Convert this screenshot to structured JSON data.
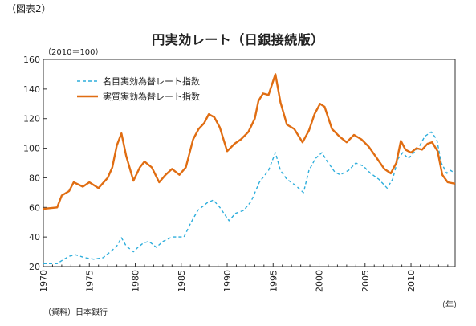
{
  "figure_label": "（図表2）",
  "unit_label": "（2010＝100）",
  "x_unit_label": "（年）",
  "source_label": "（資料）日本銀行",
  "chart_data": {
    "type": "line",
    "title": "円実効レート（日銀接続版）",
    "xlabel": "",
    "ylabel": "",
    "xlim": [
      1970,
      2014.8
    ],
    "ylim": [
      20,
      160
    ],
    "x_ticks": [
      1970,
      1975,
      1980,
      1985,
      1990,
      1995,
      2000,
      2005,
      2010
    ],
    "y_ticks": [
      20,
      40,
      60,
      80,
      100,
      120,
      140,
      160
    ],
    "legend_position": "top-left",
    "series": [
      {
        "name": "名目実効為替レート指数",
        "color": "#2eaedc",
        "dash": "dashed",
        "points": [
          [
            1970,
            22
          ],
          [
            1971.5,
            22
          ],
          [
            1972,
            24
          ],
          [
            1972.8,
            27
          ],
          [
            1973.5,
            28
          ],
          [
            1974.5,
            26
          ],
          [
            1975.5,
            25
          ],
          [
            1976.5,
            26
          ],
          [
            1977.3,
            30
          ],
          [
            1978.0,
            34
          ],
          [
            1978.5,
            39.5
          ],
          [
            1979.0,
            34
          ],
          [
            1979.8,
            30
          ],
          [
            1980.3,
            33
          ],
          [
            1980.9,
            36
          ],
          [
            1981.5,
            37
          ],
          [
            1982.3,
            33
          ],
          [
            1983.0,
            37
          ],
          [
            1984.0,
            40
          ],
          [
            1985.3,
            40
          ],
          [
            1986.0,
            49
          ],
          [
            1986.8,
            58
          ],
          [
            1987.8,
            63
          ],
          [
            1988.5,
            65
          ],
          [
            1989.2,
            60
          ],
          [
            1990.2,
            51
          ],
          [
            1990.9,
            56
          ],
          [
            1991.8,
            58
          ],
          [
            1992.6,
            64
          ],
          [
            1993.5,
            77
          ],
          [
            1994.5,
            85
          ],
          [
            1995.25,
            97
          ],
          [
            1995.8,
            85
          ],
          [
            1996.5,
            79
          ],
          [
            1997.4,
            75
          ],
          [
            1998.3,
            70
          ],
          [
            1998.9,
            85
          ],
          [
            1999.6,
            93
          ],
          [
            2000.3,
            97
          ],
          [
            2000.9,
            91
          ],
          [
            2001.7,
            84
          ],
          [
            2002.3,
            82
          ],
          [
            2003.2,
            85
          ],
          [
            2004.0,
            90
          ],
          [
            2004.8,
            88
          ],
          [
            2005.6,
            83
          ],
          [
            2006.5,
            79
          ],
          [
            2007.4,
            73
          ],
          [
            2008.0,
            79
          ],
          [
            2008.6,
            93
          ],
          [
            2009.1,
            97
          ],
          [
            2009.7,
            93
          ],
          [
            2010.3,
            97
          ],
          [
            2010.8,
            100
          ],
          [
            2011.5,
            108
          ],
          [
            2012.2,
            111
          ],
          [
            2012.8,
            106
          ],
          [
            2013.3,
            90
          ],
          [
            2013.9,
            83
          ],
          [
            2014.3,
            85
          ],
          [
            2014.8,
            83
          ]
        ]
      },
      {
        "name": "実質実効為替レート指数",
        "color": "#e06d12",
        "dash": "solid",
        "points": [
          [
            1970,
            59
          ],
          [
            1971.5,
            60
          ],
          [
            1972,
            68
          ],
          [
            1972.8,
            71
          ],
          [
            1973.3,
            77
          ],
          [
            1974.3,
            74
          ],
          [
            1975.0,
            77
          ],
          [
            1976.0,
            73
          ],
          [
            1977.0,
            80
          ],
          [
            1977.5,
            87
          ],
          [
            1978.0,
            102
          ],
          [
            1978.5,
            110
          ],
          [
            1979.0,
            95
          ],
          [
            1979.8,
            78
          ],
          [
            1980.5,
            87
          ],
          [
            1981.0,
            91
          ],
          [
            1981.8,
            87
          ],
          [
            1982.6,
            77
          ],
          [
            1983.3,
            82
          ],
          [
            1984.0,
            86
          ],
          [
            1984.8,
            82
          ],
          [
            1985.5,
            87
          ],
          [
            1986.3,
            106
          ],
          [
            1986.9,
            113
          ],
          [
            1987.5,
            117
          ],
          [
            1988.0,
            123
          ],
          [
            1988.6,
            121
          ],
          [
            1989.2,
            114
          ],
          [
            1990.0,
            98
          ],
          [
            1990.8,
            103
          ],
          [
            1991.5,
            106
          ],
          [
            1992.3,
            111
          ],
          [
            1993.0,
            120
          ],
          [
            1993.4,
            132
          ],
          [
            1993.9,
            137
          ],
          [
            1994.5,
            136
          ],
          [
            1995.25,
            150
          ],
          [
            1995.8,
            131
          ],
          [
            1996.5,
            116
          ],
          [
            1997.3,
            113
          ],
          [
            1998.2,
            104
          ],
          [
            1998.9,
            112
          ],
          [
            1999.5,
            123
          ],
          [
            2000.1,
            130
          ],
          [
            2000.6,
            128
          ],
          [
            2001.4,
            113
          ],
          [
            2002.2,
            108
          ],
          [
            2003.0,
            104
          ],
          [
            2003.8,
            109
          ],
          [
            2004.6,
            106
          ],
          [
            2005.4,
            101
          ],
          [
            2006.2,
            94
          ],
          [
            2007.1,
            86
          ],
          [
            2007.8,
            83
          ],
          [
            2008.4,
            90
          ],
          [
            2008.9,
            105
          ],
          [
            2009.4,
            99
          ],
          [
            2010.0,
            97
          ],
          [
            2010.6,
            100
          ],
          [
            2011.2,
            99
          ],
          [
            2011.8,
            103
          ],
          [
            2012.3,
            104
          ],
          [
            2012.9,
            98
          ],
          [
            2013.4,
            82
          ],
          [
            2014.0,
            77
          ],
          [
            2014.8,
            76
          ]
        ]
      }
    ]
  }
}
